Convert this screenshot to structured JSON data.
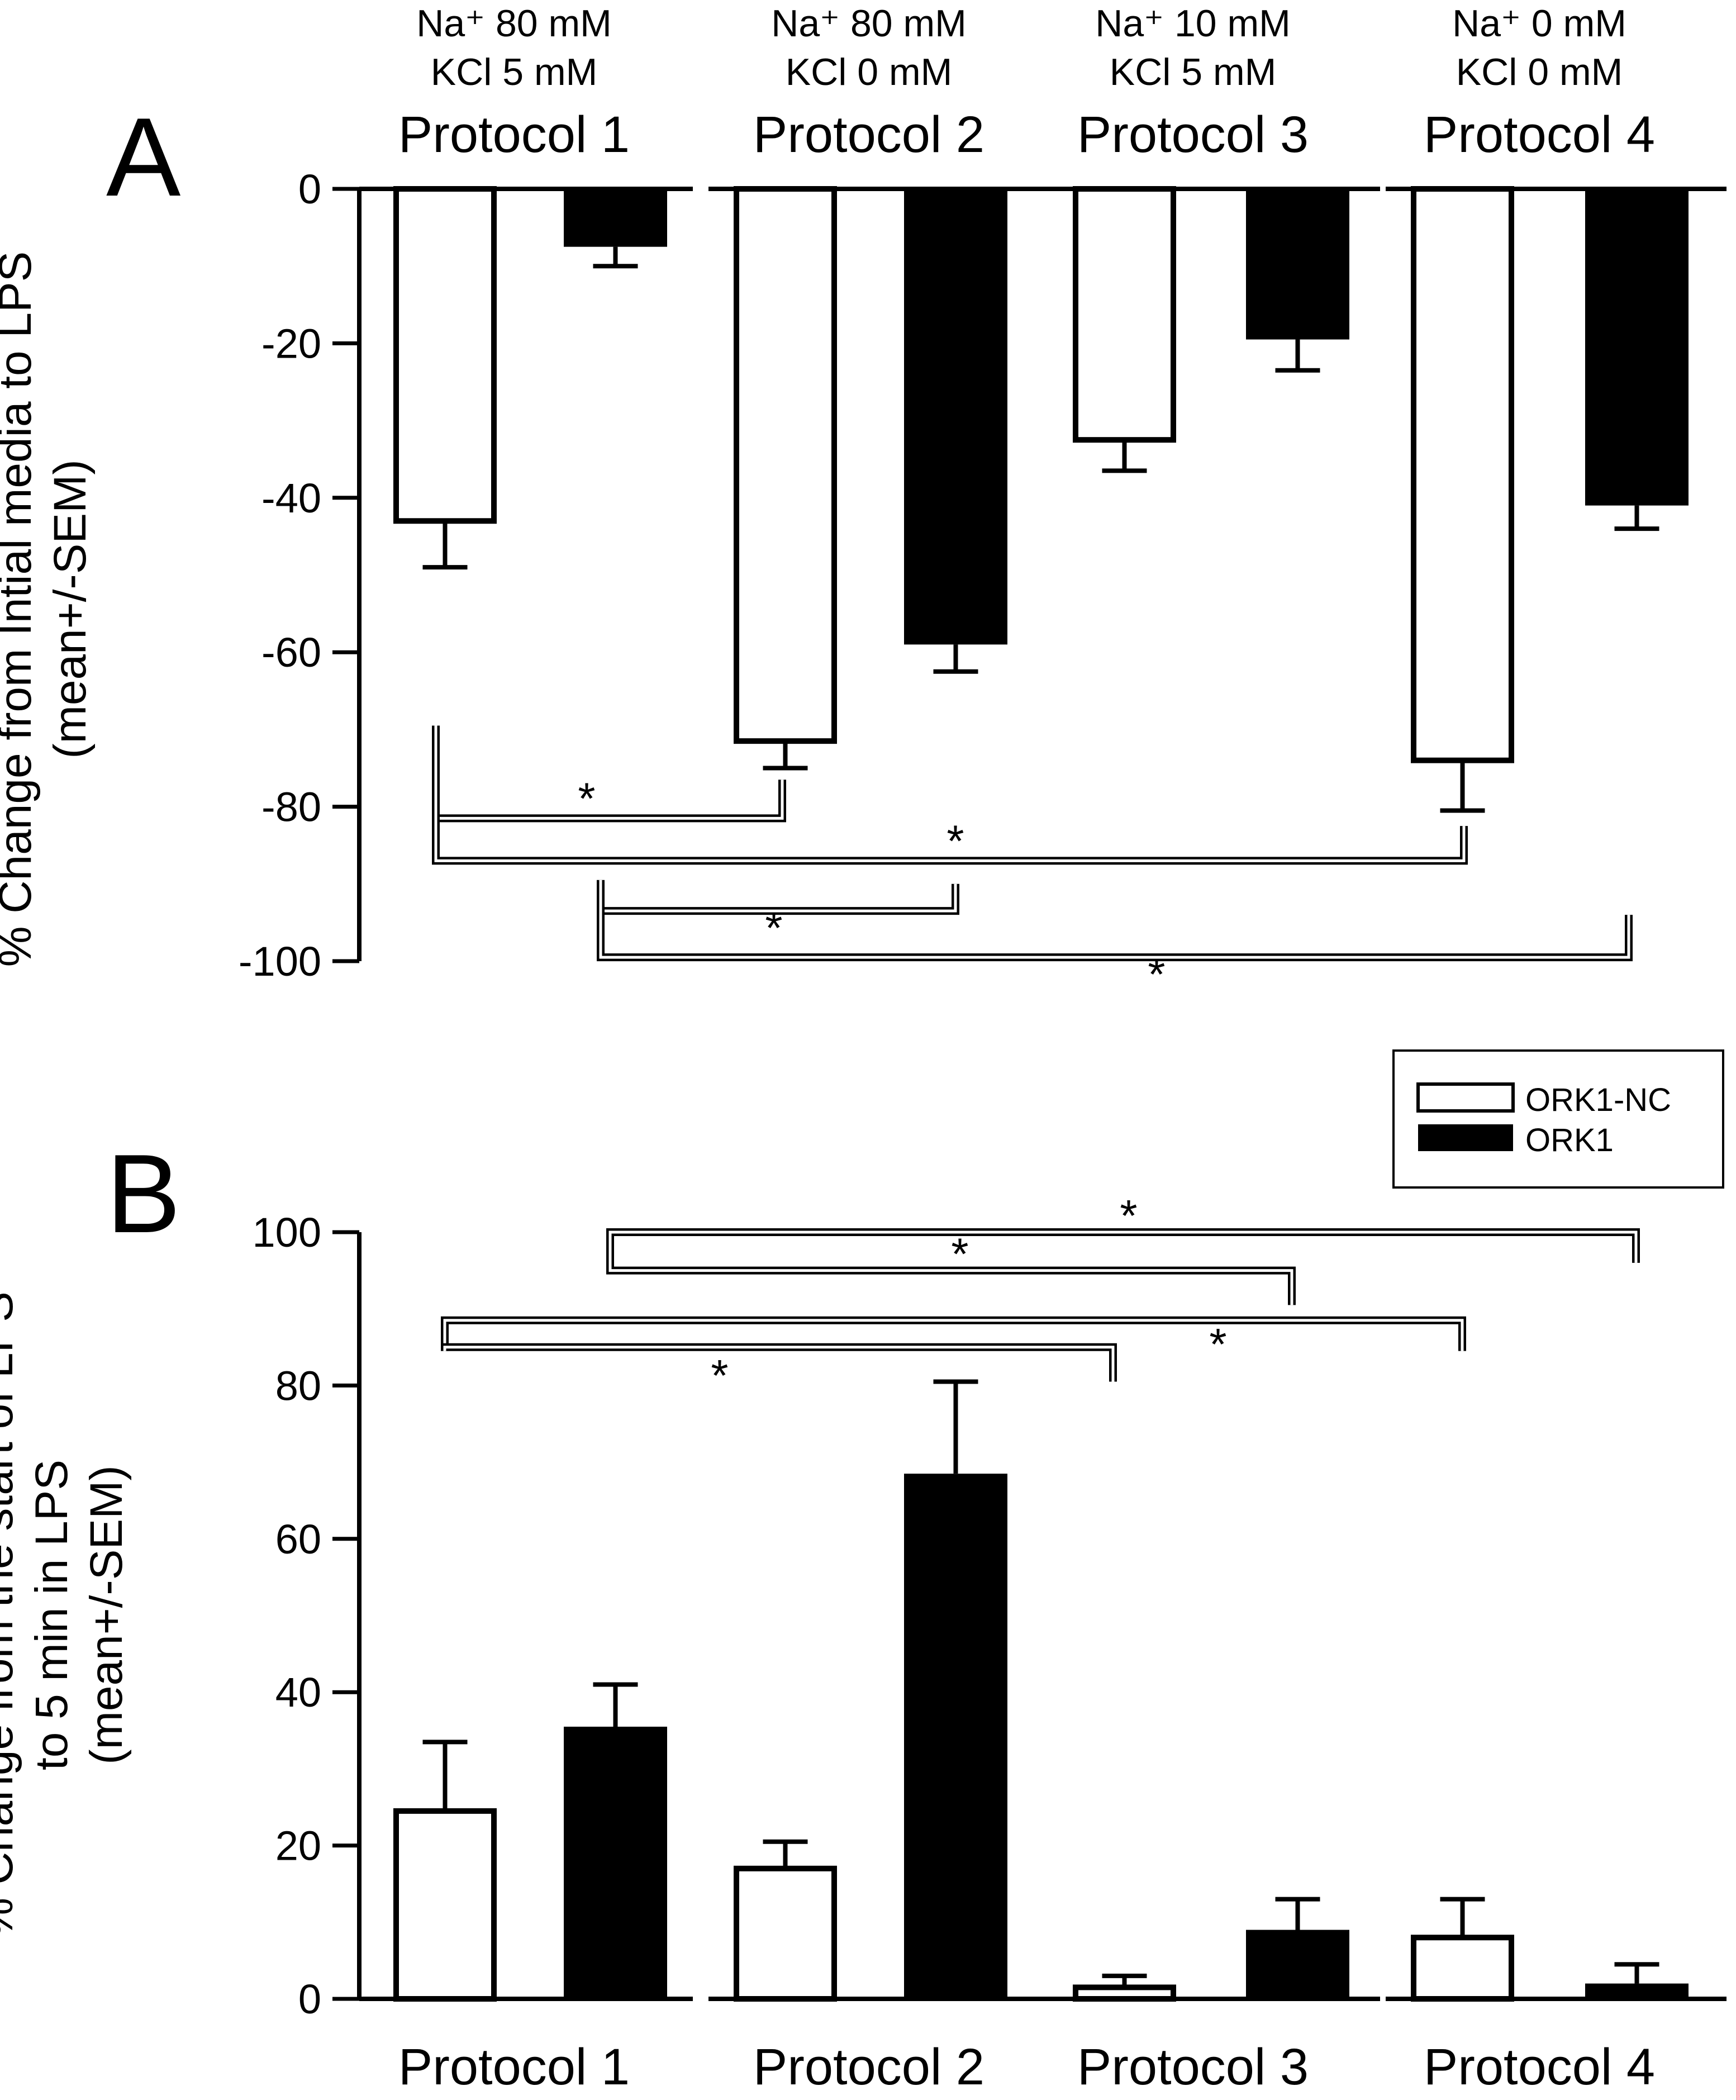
{
  "chart_data": [
    {
      "type": "bar",
      "panel": "A",
      "ylabel": [
        "% Change from Intial media to LPS",
        "(mean+/-SEM)"
      ],
      "ylim": [
        -100,
        0
      ],
      "yticks": [
        0,
        -20,
        -40,
        -60,
        -80,
        -100
      ],
      "ytick_labels": [
        "0",
        "-20",
        "-40",
        "-60",
        "-80",
        "-100"
      ],
      "categories": [
        "Protocol 1",
        "Protocol 2",
        "Protocol 3",
        "Protocol 4"
      ],
      "conditions": [
        [
          "Na⁺ 80 mM",
          "KCl 5 mM"
        ],
        [
          "Na⁺ 80 mM",
          "KCl 0 mM"
        ],
        [
          "Na⁺ 10 mM",
          "KCl 5 mM"
        ],
        [
          "Na⁺ 0 mM",
          "KCl 0 mM"
        ]
      ],
      "series": [
        {
          "name": "ORK1-NC",
          "values": [
            -43,
            -71.5,
            -32.5,
            -74
          ],
          "sem": [
            6,
            3.5,
            4,
            6.5
          ]
        },
        {
          "name": "ORK1",
          "values": [
            -7.5,
            -59,
            -19.5,
            -41
          ],
          "sem": [
            2.5,
            3.5,
            4,
            3
          ]
        }
      ],
      "significance": [
        {
          "from": "Protocol 1 ORK1-NC",
          "to": "Protocol 2 ORK1-NC",
          "label": "*"
        },
        {
          "from": "Protocol 1 ORK1-NC",
          "to": "Protocol 4 ORK1-NC",
          "label": "*"
        },
        {
          "from": "Protocol 1 ORK1",
          "to": "Protocol 2 ORK1",
          "label": "*"
        },
        {
          "from": "Protocol 1 ORK1",
          "to": "Protocol 4 ORK1",
          "label": "*"
        }
      ]
    },
    {
      "type": "bar",
      "panel": "B",
      "ylabel": [
        "% Change from the start of LPS",
        "to 5 min in LPS",
        "(mean+/-SEM)"
      ],
      "ylim": [
        0,
        100
      ],
      "yticks": [
        0,
        20,
        40,
        60,
        80,
        100
      ],
      "ytick_labels": [
        "0",
        "20",
        "40",
        "60",
        "80",
        "100"
      ],
      "categories": [
        "Protocol 1",
        "Protocol 2",
        "Protocol 3",
        "Protocol 4"
      ],
      "series": [
        {
          "name": "ORK1-NC",
          "values": [
            24.5,
            17,
            1.5,
            8
          ],
          "sem": [
            9,
            3.5,
            1.5,
            5
          ]
        },
        {
          "name": "ORK1",
          "values": [
            35.5,
            68.5,
            9,
            2
          ],
          "sem": [
            5.5,
            12,
            4,
            2.5
          ]
        }
      ],
      "significance": [
        {
          "from": "Protocol 1 ORK1",
          "to": "Protocol 4 ORK1-NC",
          "label": "*"
        },
        {
          "from": "Protocol 1 ORK1",
          "to": "Protocol 3 ORK1-NC",
          "label": "*"
        },
        {
          "from": "Protocol 1 ORK1-NC",
          "to": "Protocol 4 ORK1-NC",
          "label": "*"
        },
        {
          "from": "Protocol 1 ORK1-NC",
          "to": "Protocol 2 ORK1-NC",
          "label": "*"
        }
      ]
    }
  ],
  "legend": {
    "entries": [
      {
        "name": "ORK1-NC",
        "fill": "#ffffff"
      },
      {
        "name": "ORK1",
        "fill": "#000000"
      }
    ]
  },
  "colors": {
    "ink": "#000000",
    "paper": "#ffffff"
  }
}
